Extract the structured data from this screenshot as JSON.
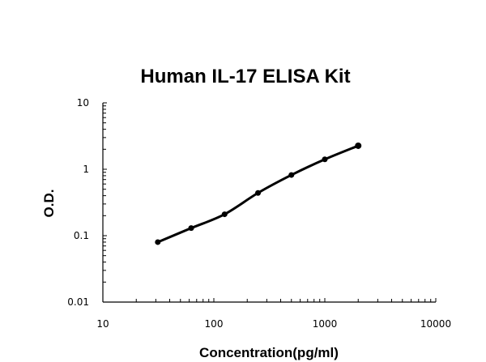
{
  "chart_data": {
    "type": "line",
    "title": "Human IL-17 ELISA Kit",
    "xlabel": "Concentration(pg/ml)",
    "ylabel": "O.D.",
    "xscale": "log",
    "yscale": "log",
    "xlim": [
      10,
      10000
    ],
    "ylim": [
      0.01,
      10
    ],
    "xticks": [
      "10",
      "100",
      "1000",
      "10000"
    ],
    "yticks": [
      "0.01",
      "0.1",
      "1",
      "10"
    ],
    "grid": false,
    "markers": true,
    "color": "#000000",
    "series": [
      {
        "x": [
          31.25,
          62.5,
          125,
          250,
          500,
          1000,
          2000
        ],
        "y": [
          0.08,
          0.13,
          0.21,
          0.44,
          0.82,
          1.41,
          2.26
        ]
      }
    ]
  }
}
